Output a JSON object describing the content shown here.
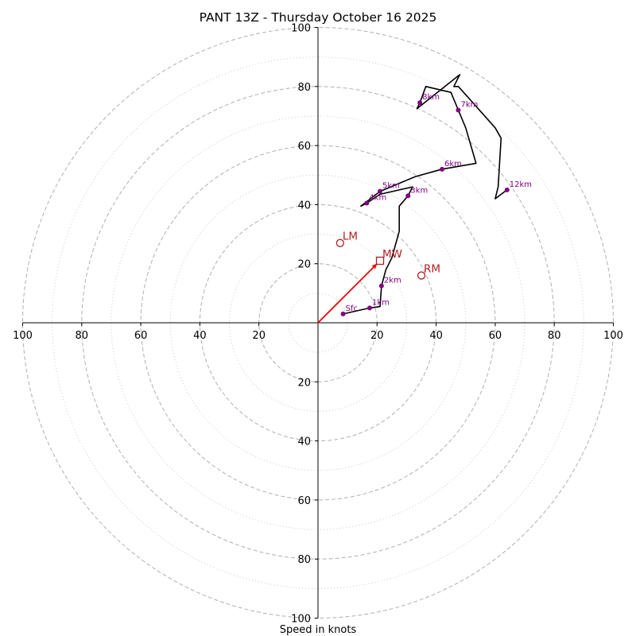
{
  "chart_data": {
    "type": "scatter",
    "title": "PANT 13Z - Thursday October 16 2025",
    "xlabel": "Speed in knots",
    "ylabel": "",
    "xlim": [
      -100,
      100
    ],
    "ylim": [
      -100,
      100
    ],
    "ring_major": [
      20,
      40,
      60,
      80,
      100
    ],
    "ring_minor": [
      10,
      30,
      50,
      70,
      90
    ],
    "x_ticks": [
      {
        "value": -100,
        "label": "100"
      },
      {
        "value": -80,
        "label": "80"
      },
      {
        "value": -60,
        "label": "60"
      },
      {
        "value": -40,
        "label": "40"
      },
      {
        "value": -20,
        "label": "20"
      },
      {
        "value": 20,
        "label": "20"
      },
      {
        "value": 40,
        "label": "40"
      },
      {
        "value": 60,
        "label": "60"
      },
      {
        "value": 80,
        "label": "80"
      },
      {
        "value": 100,
        "label": "100"
      }
    ],
    "y_ticks": [
      {
        "value": 100,
        "label": "100"
      },
      {
        "value": 80,
        "label": "80"
      },
      {
        "value": 60,
        "label": "60"
      },
      {
        "value": 40,
        "label": "40"
      },
      {
        "value": 20,
        "label": "20"
      },
      {
        "value": -20,
        "label": "20"
      },
      {
        "value": -40,
        "label": "40"
      },
      {
        "value": -60,
        "label": "60"
      },
      {
        "value": -80,
        "label": "80"
      },
      {
        "value": -100,
        "label": "100"
      }
    ],
    "trace": [
      [
        8.5,
        3.0
      ],
      [
        17.5,
        5.0
      ],
      [
        21.0,
        5.5
      ],
      [
        21.5,
        12.5
      ],
      [
        23.0,
        18.0
      ],
      [
        25.0,
        22.0
      ],
      [
        27.5,
        31.0
      ],
      [
        27.5,
        39.5
      ],
      [
        30.5,
        43.0
      ],
      [
        32.0,
        46.0
      ],
      [
        21.0,
        43.5
      ],
      [
        16.5,
        40.5
      ],
      [
        14.5,
        39.5
      ],
      [
        21.0,
        44.5
      ],
      [
        33.0,
        49.5
      ],
      [
        42.0,
        52.0
      ],
      [
        53.5,
        54.0
      ],
      [
        50.0,
        66.0
      ],
      [
        47.5,
        72.0
      ],
      [
        45.0,
        78.0
      ],
      [
        36.5,
        80.0
      ],
      [
        34.5,
        74.5
      ],
      [
        33.5,
        72.5
      ],
      [
        48.0,
        84.0
      ],
      [
        46.0,
        80.0
      ],
      [
        47.5,
        80.0
      ],
      [
        52.0,
        75.0
      ],
      [
        60.0,
        66.0
      ],
      [
        62.0,
        62.5
      ],
      [
        61.0,
        46.0
      ],
      [
        60.0,
        42.0
      ],
      [
        64.0,
        45.0
      ]
    ],
    "height_points": [
      {
        "label": "Sfc",
        "x": 8.5,
        "y": 3.0
      },
      {
        "label": "1km",
        "x": 17.5,
        "y": 5.0
      },
      {
        "label": "2km",
        "x": 21.5,
        "y": 12.5
      },
      {
        "label": "3km",
        "x": 30.5,
        "y": 43.0
      },
      {
        "label": "4km",
        "x": 16.5,
        "y": 40.5
      },
      {
        "label": "5km",
        "x": 21.0,
        "y": 44.5
      },
      {
        "label": "6km",
        "x": 42.0,
        "y": 52.0
      },
      {
        "label": "7km",
        "x": 47.5,
        "y": 72.0
      },
      {
        "label": "8km",
        "x": 34.5,
        "y": 74.5
      },
      {
        "label": "12km",
        "x": 64.0,
        "y": 45.0
      }
    ],
    "storm_motion": [
      {
        "label": "LM",
        "marker": "circle",
        "x": 7.5,
        "y": 27.0
      },
      {
        "label": "MW",
        "marker": "square",
        "x": 21.0,
        "y": 21.0
      },
      {
        "label": "RM",
        "marker": "circle",
        "x": 35.0,
        "y": 16.0
      }
    ],
    "mean_wind_vector": {
      "from": [
        0,
        0
      ],
      "to": [
        20.0,
        20.0
      ]
    },
    "colors": {
      "trace": "#000000",
      "height_points": "#800080",
      "storm_motion": "#b22222",
      "vector": "#ff0000",
      "grid": "#b0b0b0"
    }
  }
}
